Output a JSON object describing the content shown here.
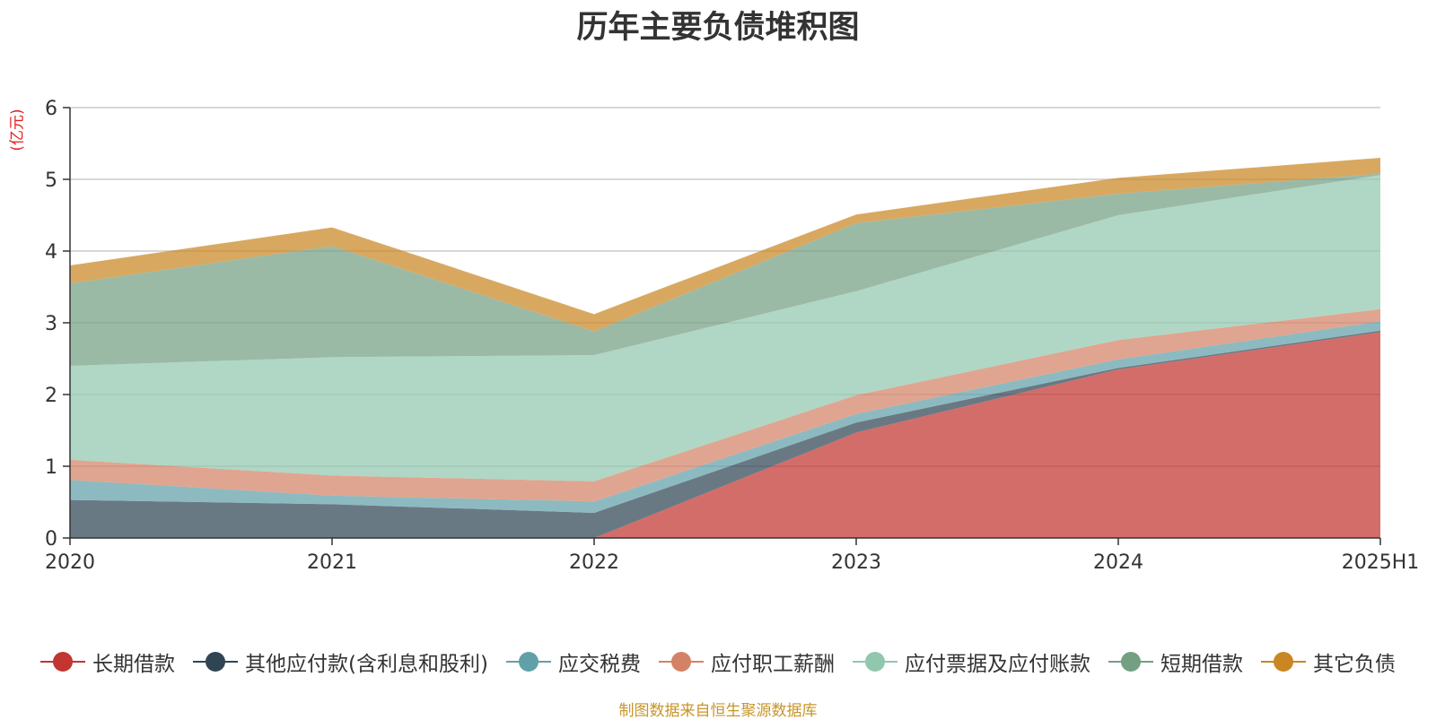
{
  "chart_data": {
    "type": "area",
    "title": "历年主要负债堆积图",
    "unit_label": "(亿元)",
    "stacked": true,
    "categories": [
      "2020",
      "2021",
      "2022",
      "2023",
      "2024",
      "2025H1"
    ],
    "ylim": [
      0,
      6
    ],
    "yticks": [
      "0",
      "1",
      "2",
      "3",
      "4",
      "5",
      "6"
    ],
    "grid": true,
    "legend_position": "bottom",
    "series": [
      {
        "name": "长期借款",
        "color": "#c23531",
        "values": [
          0,
          0,
          0,
          1.47,
          2.35,
          2.87
        ]
      },
      {
        "name": "其他应付款(含利息和股利)",
        "color": "#2f4554",
        "values": [
          0.53,
          0.47,
          0.35,
          0.14,
          0.02,
          0.02
        ]
      },
      {
        "name": "应交税费",
        "color": "#61a0a8",
        "values": [
          0.28,
          0.12,
          0.16,
          0.12,
          0.12,
          0.13
        ]
      },
      {
        "name": "应付职工薪酬",
        "color": "#d48265",
        "values": [
          0.28,
          0.28,
          0.28,
          0.26,
          0.27,
          0.17
        ]
      },
      {
        "name": "应付票据及应付账款",
        "color": "#91c7ae",
        "values": [
          1.31,
          1.65,
          1.76,
          1.45,
          1.74,
          1.87
        ]
      },
      {
        "name": "短期借款",
        "color": "#749f83",
        "values": [
          1.15,
          1.55,
          0.33,
          0.95,
          0.3,
          0.02
        ]
      },
      {
        "name": "其它负债",
        "color": "#ca8622",
        "values": [
          0.25,
          0.26,
          0.24,
          0.12,
          0.22,
          0.22
        ]
      }
    ]
  },
  "source_note": "制图数据来自恒生聚源数据库"
}
